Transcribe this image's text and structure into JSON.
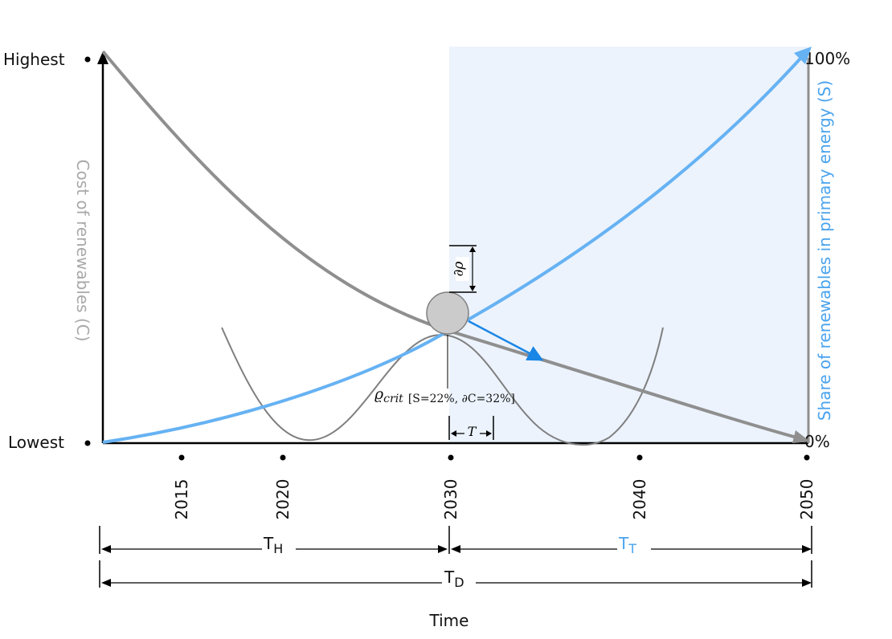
{
  "left_axis": {
    "top_label": "Highest",
    "bottom_label": "Lowest",
    "title": "Cost of renewables (C)"
  },
  "right_axis": {
    "top_label": "100%",
    "bottom_label": "0%",
    "title": "Share of renewables in primary energy (S)"
  },
  "x_axis": {
    "title": "Time",
    "years": [
      "2015",
      "2020",
      "2030",
      "2040",
      "2050"
    ]
  },
  "annotations": {
    "rho_crit_symbol": "ϱ",
    "rho_crit_subscript": "crit",
    "rho_crit_detail": "[S=22%, ∂C=32%]",
    "d_rho": "∂ρ",
    "tau": "T"
  },
  "spans": {
    "th_main": "T",
    "th_sub": "H",
    "tt_main": "T",
    "tt_sub": "T",
    "td_main": "T",
    "td_sub": "D"
  },
  "colors": {
    "share_curve": "#66b2f3",
    "cost_curve": "#8f8f8f",
    "transition_region": "#ecf3fd",
    "accent_arrow": "#1a86e6"
  }
}
